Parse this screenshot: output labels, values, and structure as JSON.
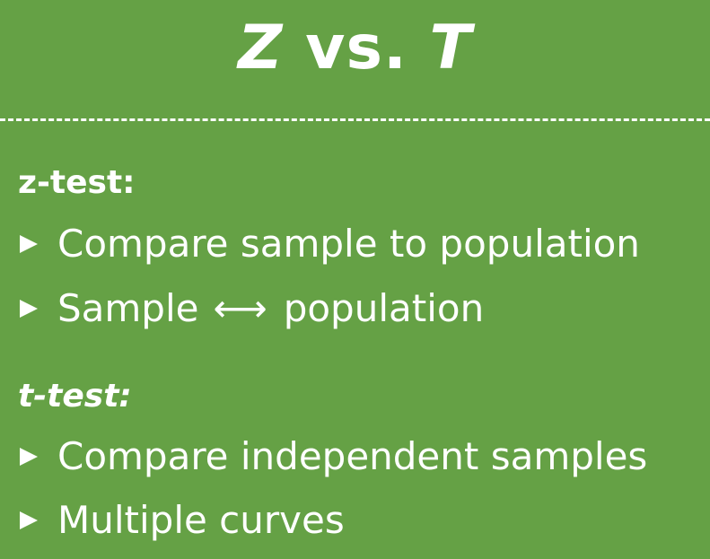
{
  "title": {
    "left": "Z",
    "middle": "vs.",
    "right": "T"
  },
  "sections": [
    {
      "label": "z-test:",
      "bullets": [
        {
          "text": "Compare sample to population"
        },
        {
          "left": "Sample",
          "arrow": "⟷",
          "right": "population"
        }
      ]
    },
    {
      "label": "t-test:",
      "bullets": [
        {
          "text": "Compare independent samples"
        },
        {
          "text": "Multiple curves"
        }
      ]
    }
  ],
  "colors": {
    "background": "#65a145",
    "text": "#ffffff"
  }
}
